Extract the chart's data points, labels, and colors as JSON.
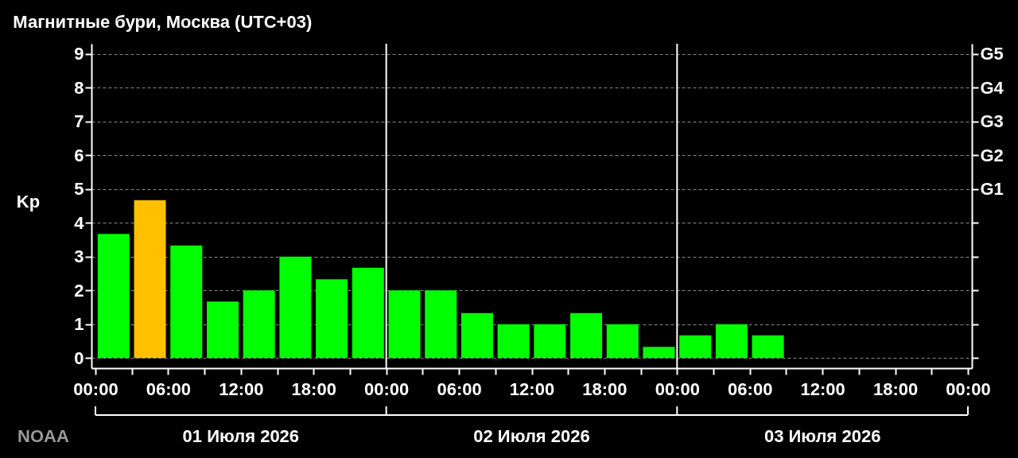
{
  "chart_data": {
    "type": "bar",
    "title": "Магнитные бури, Москва (UTC+03)",
    "ylabel": "Kp",
    "x": [
      "2026-07-01T01:30",
      "2026-07-01T04:30",
      "2026-07-01T07:30",
      "2026-07-01T10:30",
      "2026-07-01T13:30",
      "2026-07-01T16:30",
      "2026-07-01T19:30",
      "2026-07-01T22:30",
      "2026-07-02T01:30",
      "2026-07-02T04:30",
      "2026-07-02T07:30",
      "2026-07-02T10:30",
      "2026-07-02T13:30",
      "2026-07-02T16:30",
      "2026-07-02T19:30",
      "2026-07-02T22:30",
      "2026-07-03T01:30",
      "2026-07-03T04:30",
      "2026-07-03T07:30"
    ],
    "values": [
      3.67,
      4.67,
      3.33,
      1.67,
      2,
      3,
      2.33,
      2.67,
      2,
      2,
      1.33,
      1,
      1,
      1.33,
      1,
      0.33,
      0.67,
      1,
      0.67
    ],
    "colors": [
      "#00ff00",
      "#ffc000",
      "#00ff00",
      "#00ff00",
      "#00ff00",
      "#00ff00",
      "#00ff00",
      "#00ff00",
      "#00ff00",
      "#00ff00",
      "#00ff00",
      "#00ff00",
      "#00ff00",
      "#00ff00",
      "#00ff00",
      "#00ff00",
      "#00ff00",
      "#00ff00",
      "#00ff00"
    ],
    "xlim": [
      "2026-07-01T00:00",
      "2026-07-04T00:00"
    ],
    "xticks": [
      {
        "value": "2026-07-01T00:00",
        "label": "00:00"
      },
      {
        "value": "2026-07-01T03:00",
        "label": null
      },
      {
        "value": "2026-07-01T06:00",
        "label": "06:00"
      },
      {
        "value": "2026-07-01T09:00",
        "label": null
      },
      {
        "value": "2026-07-01T12:00",
        "label": "12:00"
      },
      {
        "value": "2026-07-01T15:00",
        "label": null
      },
      {
        "value": "2026-07-01T18:00",
        "label": "18:00"
      },
      {
        "value": "2026-07-01T21:00",
        "label": null
      },
      {
        "value": "2026-07-02T00:00",
        "label": "00:00"
      },
      {
        "value": "2026-07-02T03:00",
        "label": null
      },
      {
        "value": "2026-07-02T06:00",
        "label": "06:00"
      },
      {
        "value": "2026-07-02T09:00",
        "label": null
      },
      {
        "value": "2026-07-02T12:00",
        "label": "12:00"
      },
      {
        "value": "2026-07-02T15:00",
        "label": null
      },
      {
        "value": "2026-07-02T18:00",
        "label": "18:00"
      },
      {
        "value": "2026-07-02T21:00",
        "label": null
      },
      {
        "value": "2026-07-03T00:00",
        "label": "00:00"
      },
      {
        "value": "2026-07-03T03:00",
        "label": null
      },
      {
        "value": "2026-07-03T06:00",
        "label": "06:00"
      },
      {
        "value": "2026-07-03T09:00",
        "label": null
      },
      {
        "value": "2026-07-03T12:00",
        "label": "12:00"
      },
      {
        "value": "2026-07-03T15:00",
        "label": null
      },
      {
        "value": "2026-07-03T18:00",
        "label": "18:00"
      },
      {
        "value": "2026-07-03T21:00",
        "label": null
      },
      {
        "value": "2026-07-04T00:00",
        "label": "00:00"
      }
    ],
    "ylim": [
      -0.3,
      9.3
    ],
    "yticks": [
      0,
      1,
      2,
      3,
      4,
      5,
      6,
      7,
      8,
      9
    ],
    "y2_categories": [
      "G5",
      "G4",
      "G3",
      "G2",
      "G1",
      null,
      null,
      null,
      null,
      null
    ],
    "ref_lines": [
      {
        "axis": "x",
        "value": "2026-07-02T00:00",
        "color": "#ffffff"
      },
      {
        "axis": "x",
        "value": "2026-07-03T00:00",
        "color": "#ffffff"
      }
    ],
    "grid": "y",
    "annotations": [
      "01 Июля 2026",
      "02 Июля 2026",
      "03 Июля 2026",
      "NOAA"
    ]
  }
}
